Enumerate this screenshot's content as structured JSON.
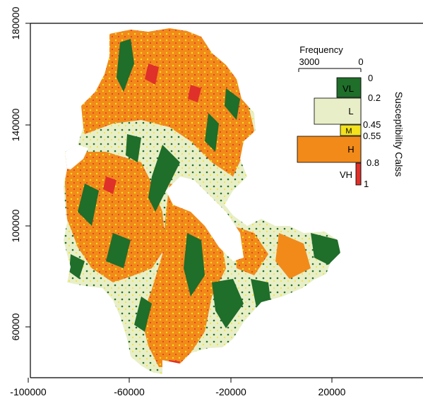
{
  "map": {
    "x_ticks": [
      "-100000",
      "-60000",
      "-20000",
      "20000"
    ],
    "y_ticks": [
      "180000",
      "140000",
      "100000",
      "60000"
    ]
  },
  "legend": {
    "frequency_label": "Frequency",
    "frequency_ticks": [
      "3000",
      "0"
    ],
    "axis_title": "Susceptibility Calss",
    "boundaries": [
      "0",
      "0.2",
      "0.45",
      "0.55",
      "0.8",
      "1"
    ],
    "classes": [
      {
        "label": "VL",
        "color": "#1f6e2a",
        "frequency": 1000
      },
      {
        "label": "L",
        "color": "#e8efc8",
        "frequency": 1950
      },
      {
        "label": "M",
        "color": "#f3e21c",
        "frequency": 850
      },
      {
        "label": "H",
        "color": "#f28a1a",
        "frequency": 2700
      },
      {
        "label": "VH",
        "color": "#e0302a",
        "frequency": 220
      }
    ]
  },
  "colors": {
    "very_low": "#1f6e2a",
    "low": "#e8efc8",
    "moderate": "#f3e21c",
    "high": "#f28a1a",
    "very_high": "#e0302a"
  }
}
